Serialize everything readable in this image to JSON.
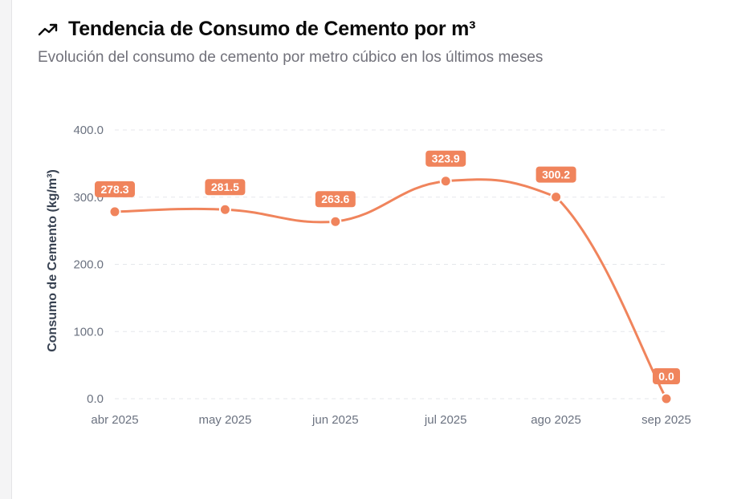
{
  "card": {
    "title": "Tendencia de Consumo de Cemento por m³",
    "subtitle": "Evolución del consumo de cemento por metro cúbico en los últimos meses",
    "icon": "trending-up-icon"
  },
  "colors": {
    "series": "#f0845c",
    "label_bg": "#f0845c",
    "grid": "#e5e7eb",
    "axis_text": "#6b7280",
    "ylabel_text": "#374151"
  },
  "chart_data": {
    "type": "line",
    "title": "",
    "xlabel": "",
    "ylabel": "Consumo de Cemento (kg/m³)",
    "categories": [
      "abr 2025",
      "may 2025",
      "jun 2025",
      "jul 2025",
      "ago 2025",
      "sep 2025"
    ],
    "series": [
      {
        "values": [
          278.3,
          281.5,
          263.6,
          323.9,
          300.2,
          0.0
        ]
      }
    ],
    "data_labels": [
      "278.3",
      "281.5",
      "263.6",
      "323.9",
      "300.2",
      "0.0"
    ],
    "yticks": [
      "0.0",
      "100.0",
      "200.0",
      "300.0",
      "400.0"
    ],
    "ylim": [
      0,
      400
    ],
    "grid": true,
    "curve": "smooth"
  }
}
